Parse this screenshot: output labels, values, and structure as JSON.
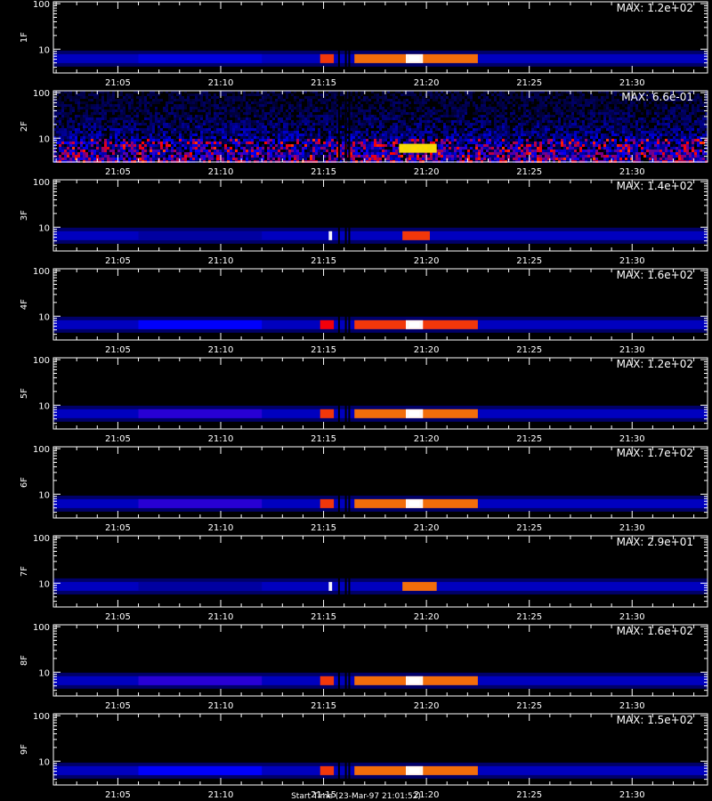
{
  "figure": {
    "footer": "Start Time (23-Mar-97 21:01:52)"
  },
  "chart_data": [
    {
      "type": "heatmap",
      "channel_label": "1F",
      "max_label": "MAX: 1.2e+02",
      "max_value": 120,
      "x_ticks": [
        "21:05",
        "21:10",
        "21:15",
        "21:20",
        "21:25",
        "21:30"
      ],
      "x_range": [
        "21:01:52",
        "21:33:40"
      ],
      "y_ticks": [
        "10",
        "100"
      ],
      "y_scale": "log",
      "ylim": [
        3,
        110
      ],
      "band": {
        "center": 6.2,
        "noise": false,
        "features": [
          {
            "t_start": "21:06",
            "t_end": "21:12",
            "intensity": 0.35
          },
          {
            "t_start": "21:14:50",
            "t_end": "21:15:30",
            "intensity": 0.75
          },
          {
            "t_start": "21:16:30",
            "t_end": "21:22:30",
            "intensity": 0.8
          },
          {
            "t_start": "21:19",
            "t_end": "21:19:50",
            "intensity": 1.0
          }
        ]
      }
    },
    {
      "type": "heatmap",
      "channel_label": "2F",
      "max_label": "MAX: 6.6e-01",
      "max_value": 0.66,
      "x_ticks": [
        "21:05",
        "21:10",
        "21:15",
        "21:20",
        "21:25",
        "21:30"
      ],
      "x_range": [
        "21:01:52",
        "21:33:40"
      ],
      "y_ticks": [
        "10",
        "100"
      ],
      "y_scale": "log",
      "ylim": [
        3,
        110
      ],
      "band": {
        "center": 6.0,
        "noise": true,
        "features": [
          {
            "t_start": "21:18:40",
            "t_end": "21:20:30",
            "intensity": 0.9
          }
        ]
      }
    },
    {
      "type": "heatmap",
      "channel_label": "3F",
      "max_label": "MAX: 1.4e+02",
      "max_value": 140,
      "x_ticks": [
        "21:05",
        "21:10",
        "21:15",
        "21:20",
        "21:25",
        "21:30"
      ],
      "x_range": [
        "21:01:52",
        "21:33:40"
      ],
      "y_ticks": [
        "10",
        "100"
      ],
      "y_scale": "log",
      "ylim": [
        3,
        110
      ],
      "band": {
        "center": 6.5,
        "noise": false,
        "features": [
          {
            "t_start": "21:06",
            "t_end": "21:12",
            "intensity": 0.25
          },
          {
            "t_start": "21:15:15",
            "t_end": "21:15:25",
            "intensity": 1.0
          },
          {
            "t_start": "21:18:50",
            "t_end": "21:20:10",
            "intensity": 0.75
          }
        ]
      }
    },
    {
      "type": "heatmap",
      "channel_label": "4F",
      "max_label": "MAX: 1.6e+02",
      "max_value": 160,
      "x_ticks": [
        "21:05",
        "21:10",
        "21:15",
        "21:20",
        "21:25",
        "21:30"
      ],
      "x_range": [
        "21:01:52",
        "21:33:40"
      ],
      "y_ticks": [
        "10",
        "100"
      ],
      "y_scale": "log",
      "ylim": [
        3,
        110
      ],
      "band": {
        "center": 6.5,
        "noise": false,
        "features": [
          {
            "t_start": "21:06",
            "t_end": "21:12",
            "intensity": 0.4
          },
          {
            "t_start": "21:14:50",
            "t_end": "21:15:30",
            "intensity": 0.7
          },
          {
            "t_start": "21:16:30",
            "t_end": "21:22:30",
            "intensity": 0.75
          },
          {
            "t_start": "21:19",
            "t_end": "21:19:50",
            "intensity": 1.0
          }
        ]
      }
    },
    {
      "type": "heatmap",
      "channel_label": "5F",
      "max_label": "MAX: 1.2e+02",
      "max_value": 120,
      "x_ticks": [
        "21:05",
        "21:10",
        "21:15",
        "21:20",
        "21:25",
        "21:30"
      ],
      "x_range": [
        "21:01:52",
        "21:33:40"
      ],
      "y_ticks": [
        "10",
        "100"
      ],
      "y_scale": "log",
      "ylim": [
        3,
        110
      ],
      "band": {
        "center": 6.5,
        "noise": false,
        "features": [
          {
            "t_start": "21:06",
            "t_end": "21:12",
            "intensity": 0.45
          },
          {
            "t_start": "21:14:50",
            "t_end": "21:15:30",
            "intensity": 0.75
          },
          {
            "t_start": "21:16:30",
            "t_end": "21:22:30",
            "intensity": 0.8
          },
          {
            "t_start": "21:19",
            "t_end": "21:19:50",
            "intensity": 1.0
          }
        ]
      }
    },
    {
      "type": "heatmap",
      "channel_label": "6F",
      "max_label": "MAX: 1.7e+02",
      "max_value": 170,
      "x_ticks": [
        "21:05",
        "21:10",
        "21:15",
        "21:20",
        "21:25",
        "21:30"
      ],
      "x_range": [
        "21:01:52",
        "21:33:40"
      ],
      "y_ticks": [
        "10",
        "100"
      ],
      "y_scale": "log",
      "ylim": [
        3,
        110
      ],
      "band": {
        "center": 6.2,
        "noise": false,
        "features": [
          {
            "t_start": "21:06",
            "t_end": "21:12",
            "intensity": 0.45
          },
          {
            "t_start": "21:14:50",
            "t_end": "21:15:30",
            "intensity": 0.75
          },
          {
            "t_start": "21:16:30",
            "t_end": "21:22:30",
            "intensity": 0.8
          },
          {
            "t_start": "21:19",
            "t_end": "21:19:50",
            "intensity": 1.0
          }
        ]
      }
    },
    {
      "type": "heatmap",
      "channel_label": "7F",
      "max_label": "MAX: 2.9e+01",
      "max_value": 29,
      "x_ticks": [
        "21:05",
        "21:10",
        "21:15",
        "21:20",
        "21:25",
        "21:30"
      ],
      "x_range": [
        "21:01:52",
        "21:33:40"
      ],
      "y_ticks": [
        "10",
        "100"
      ],
      "y_scale": "log",
      "ylim": [
        3,
        110
      ],
      "band": {
        "center": 8.5,
        "noise": false,
        "features": [
          {
            "t_start": "21:06",
            "t_end": "21:12",
            "intensity": 0.25
          },
          {
            "t_start": "21:15:15",
            "t_end": "21:15:25",
            "intensity": 1.0
          },
          {
            "t_start": "21:18:50",
            "t_end": "21:20:30",
            "intensity": 0.8
          }
        ]
      }
    },
    {
      "type": "heatmap",
      "channel_label": "8F",
      "max_label": "MAX: 1.6e+02",
      "max_value": 160,
      "x_ticks": [
        "21:05",
        "21:10",
        "21:15",
        "21:20",
        "21:25",
        "21:30"
      ],
      "x_range": [
        "21:01:52",
        "21:33:40"
      ],
      "y_ticks": [
        "10",
        "100"
      ],
      "y_scale": "log",
      "ylim": [
        3,
        110
      ],
      "band": {
        "center": 6.5,
        "noise": false,
        "features": [
          {
            "t_start": "21:06",
            "t_end": "21:12",
            "intensity": 0.45
          },
          {
            "t_start": "21:14:50",
            "t_end": "21:15:30",
            "intensity": 0.75
          },
          {
            "t_start": "21:16:30",
            "t_end": "21:22:30",
            "intensity": 0.8
          },
          {
            "t_start": "21:19",
            "t_end": "21:19:50",
            "intensity": 1.0
          }
        ]
      }
    },
    {
      "type": "heatmap",
      "channel_label": "9F",
      "max_label": "MAX: 1.5e+02",
      "max_value": 150,
      "x_ticks": [
        "21:05",
        "21:10",
        "21:15",
        "21:20",
        "21:25",
        "21:30"
      ],
      "x_range": [
        "21:01:52",
        "21:33:40"
      ],
      "y_ticks": [
        "10",
        "100"
      ],
      "y_scale": "log",
      "ylim": [
        3,
        110
      ],
      "band": {
        "center": 6.2,
        "noise": false,
        "features": [
          {
            "t_start": "21:06",
            "t_end": "21:12",
            "intensity": 0.4
          },
          {
            "t_start": "21:14:50",
            "t_end": "21:15:30",
            "intensity": 0.75
          },
          {
            "t_start": "21:16:30",
            "t_end": "21:22:30",
            "intensity": 0.8
          },
          {
            "t_start": "21:19",
            "t_end": "21:19:50",
            "intensity": 1.0
          }
        ]
      }
    }
  ]
}
